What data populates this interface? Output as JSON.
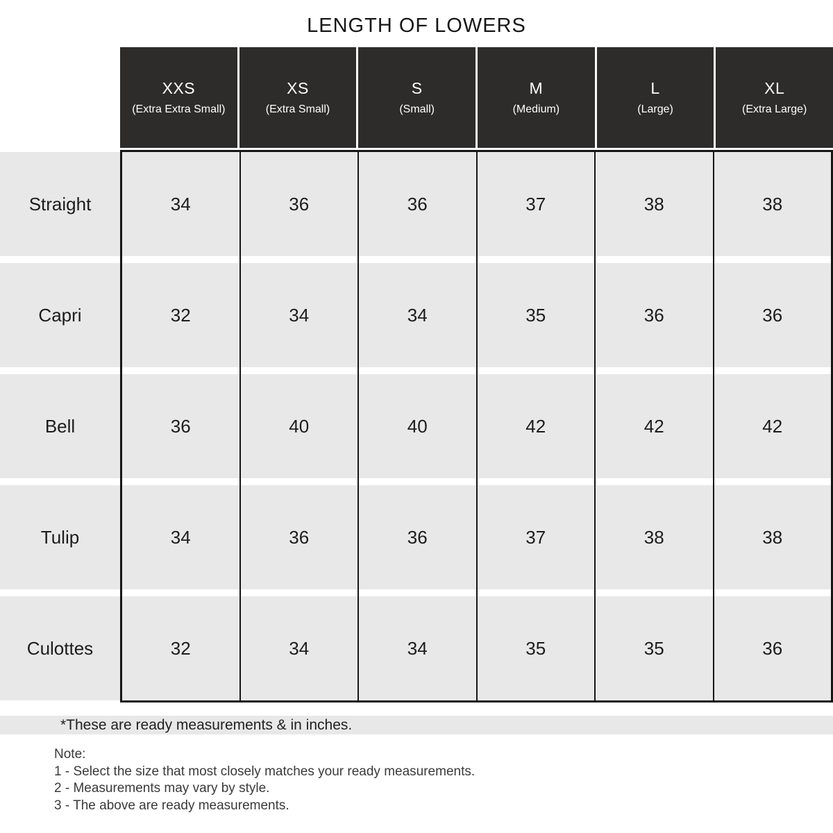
{
  "title": "LENGTH OF LOWERS",
  "table": {
    "columns": [
      {
        "code": "XXS",
        "label": "(Extra Extra Small)"
      },
      {
        "code": "XS",
        "label": "(Extra Small)"
      },
      {
        "code": "S",
        "label": "(Small)"
      },
      {
        "code": "M",
        "label": "(Medium)"
      },
      {
        "code": "L",
        "label": "(Large)"
      },
      {
        "code": "XL",
        "label": "(Extra Large)"
      }
    ],
    "rows": [
      {
        "label": "Straight",
        "values": [
          "34",
          "36",
          "36",
          "37",
          "38",
          "38"
        ]
      },
      {
        "label": "Capri",
        "values": [
          "32",
          "34",
          "34",
          "35",
          "36",
          "36"
        ]
      },
      {
        "label": "Bell",
        "values": [
          "36",
          "40",
          "40",
          "42",
          "42",
          "42"
        ]
      },
      {
        "label": "Tulip",
        "values": [
          "34",
          "36",
          "36",
          "37",
          "38",
          "38"
        ]
      },
      {
        "label": "Culottes",
        "values": [
          "32",
          "34",
          "34",
          "35",
          "35",
          "36"
        ]
      }
    ]
  },
  "footnote": "*These are ready measurements & in inches.",
  "notes": {
    "heading": "Note:",
    "items": [
      "1 - Select the size that most closely matches your ready measurements.",
      "2 - Measurements may vary by style.",
      "3 - The above are ready measurements."
    ]
  },
  "colors": {
    "header_bg": "#2d2c2b",
    "header_text": "#ffffff",
    "cell_bg": "#e9e8e8",
    "border": "#161616",
    "text": "#1c1c1c"
  },
  "chart_data": {
    "type": "table",
    "title": "LENGTH OF LOWERS",
    "unit": "inches",
    "columns": [
      "XXS (Extra Extra Small)",
      "XS (Extra Small)",
      "S (Small)",
      "M (Medium)",
      "L (Large)",
      "XL (Extra Large)"
    ],
    "row_labels": [
      "Straight",
      "Capri",
      "Bell",
      "Tulip",
      "Culottes"
    ],
    "values": [
      [
        34,
        36,
        36,
        37,
        38,
        38
      ],
      [
        32,
        34,
        34,
        35,
        36,
        36
      ],
      [
        36,
        40,
        40,
        42,
        42,
        42
      ],
      [
        34,
        36,
        36,
        37,
        38,
        38
      ],
      [
        32,
        34,
        34,
        35,
        35,
        36
      ]
    ]
  }
}
